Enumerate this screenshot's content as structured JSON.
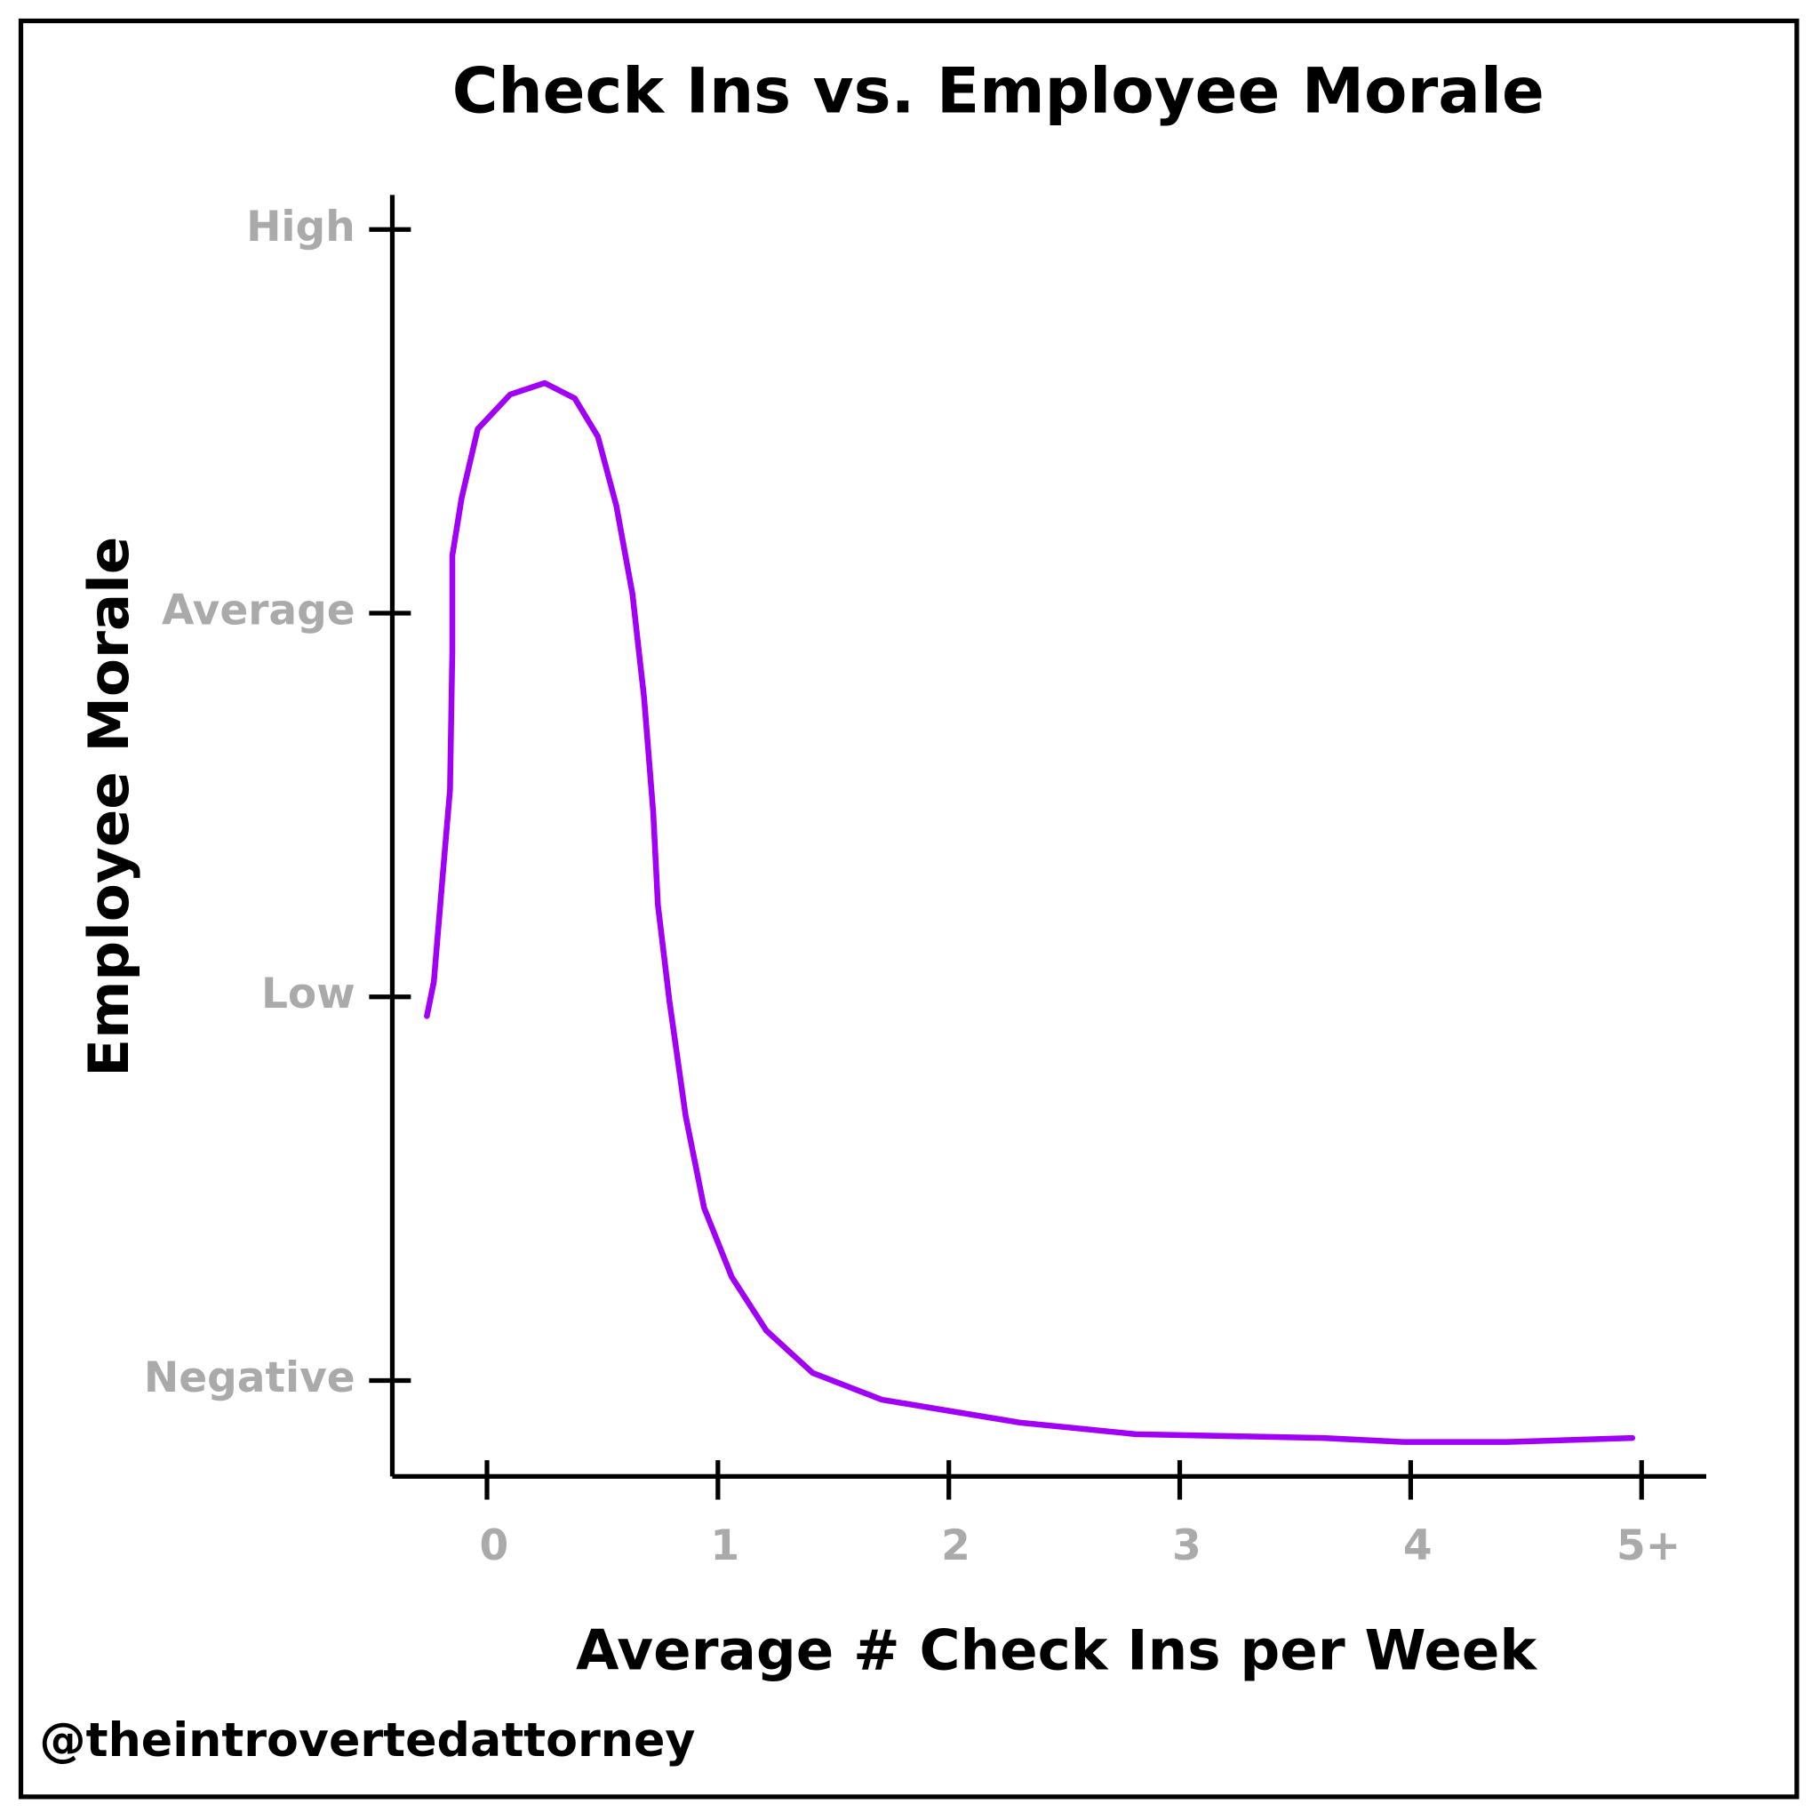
{
  "chart_data": {
    "type": "line",
    "title": "Check Ins vs. Employee Morale",
    "x_label": "Average # Check Ins per Week",
    "y_label": "Employee Morale",
    "credit": "@theintrovertedattorney",
    "xlim": [
      -0.41,
      5.28
    ],
    "ylim": [
      -0.25,
      3.09
    ],
    "xticks": [
      0,
      1,
      2,
      3,
      4,
      {
        "value": 5,
        "label": "5+"
      }
    ],
    "yticks": [
      {
        "value": 0,
        "label": "Negative"
      },
      {
        "value": 1,
        "label": "Low"
      },
      {
        "value": 2,
        "label": "Average"
      },
      {
        "value": 3,
        "label": "High"
      }
    ],
    "grid": false,
    "series": [
      {
        "color": "#a000f5",
        "x": [
          -0.26,
          -0.23,
          -0.19,
          -0.16,
          -0.15,
          -0.15,
          -0.11,
          -0.04,
          0.1,
          0.25,
          0.38,
          0.48,
          0.56,
          0.63,
          0.68,
          0.72,
          0.74,
          0.79,
          0.86,
          0.94,
          1.06,
          1.21,
          1.41,
          1.71,
          2.01,
          2.31,
          2.81,
          3.62,
          3.97,
          4.42,
          4.96
        ],
        "values": [
          0.95,
          1.04,
          1.33,
          1.54,
          1.9,
          2.15,
          2.3,
          2.48,
          2.57,
          2.6,
          2.56,
          2.46,
          2.28,
          2.05,
          1.78,
          1.48,
          1.24,
          0.99,
          0.69,
          0.45,
          0.27,
          0.13,
          0.02,
          -0.05,
          -0.08,
          -0.11,
          -0.14,
          -0.15,
          -0.16,
          -0.16,
          -0.15
        ]
      }
    ]
  }
}
